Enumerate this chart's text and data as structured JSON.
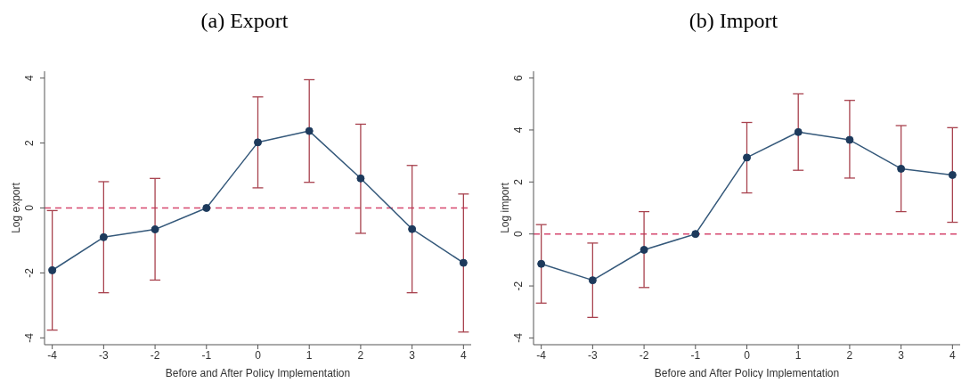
{
  "chart_data": [
    {
      "type": "line",
      "title": "(a) Export",
      "xlabel": "Before and After Policy Implementation",
      "ylabel": "Log export",
      "marker": "circle",
      "line_style": "solid",
      "x": [
        -4,
        -3,
        -2,
        -1,
        0,
        1,
        2,
        3,
        4
      ],
      "series": [
        {
          "color": "#34587a",
          "values": [
            -1.92,
            -0.9,
            -0.66,
            0,
            2.02,
            2.37,
            0.91,
            -0.65,
            -1.69
          ],
          "errors": [
            [
              -3.76,
              -0.08
            ],
            [
              -2.61,
              0.81
            ],
            [
              -2.22,
              0.91
            ],
            null,
            [
              0.62,
              3.42
            ],
            [
              0.79,
              3.95
            ],
            [
              -0.78,
              2.58
            ],
            [
              -2.61,
              1.31
            ],
            [
              -3.82,
              0.43
            ]
          ]
        }
      ],
      "xlim": [
        -4.15,
        4.15
      ],
      "xticks": [
        -4,
        -3,
        -2,
        -1,
        0,
        1,
        2,
        3,
        4
      ],
      "ylim": [
        -4.21,
        4.21
      ],
      "yticks": [
        -4,
        -2,
        0,
        2,
        4
      ],
      "ref_lines": [
        {
          "axis": "y",
          "value": 0,
          "color": "#d6476e",
          "line_style": "dashed"
        }
      ]
    },
    {
      "type": "line",
      "title": "(b) Import",
      "xlabel": "Before and After Policy Implementation",
      "ylabel": "Log import",
      "marker": "circle",
      "line_style": "solid",
      "x": [
        -4,
        -3,
        -2,
        -1,
        0,
        1,
        2,
        3,
        4
      ],
      "series": [
        {
          "color": "#34587a",
          "values": [
            -1.15,
            -1.78,
            -0.61,
            0,
            2.94,
            3.92,
            3.62,
            2.51,
            2.27
          ],
          "errors": [
            [
              -2.66,
              0.36
            ],
            [
              -3.21,
              -0.35
            ],
            [
              -2.06,
              0.86
            ],
            null,
            [
              1.58,
              4.29
            ],
            [
              2.45,
              5.39
            ],
            [
              2.15,
              5.14
            ],
            [
              0.86,
              4.17
            ],
            [
              0.45,
              4.09
            ]
          ]
        }
      ],
      "xlim": [
        -4.15,
        4.15
      ],
      "xticks": [
        -4,
        -3,
        -2,
        -1,
        0,
        1,
        2,
        3,
        4
      ],
      "ylim": [
        -4.26,
        6.26
      ],
      "yticks": [
        -4,
        -2,
        0,
        2,
        4,
        6
      ],
      "ref_lines": [
        {
          "axis": "y",
          "value": 0,
          "color": "#d6476e",
          "line_style": "dashed"
        }
      ]
    }
  ]
}
